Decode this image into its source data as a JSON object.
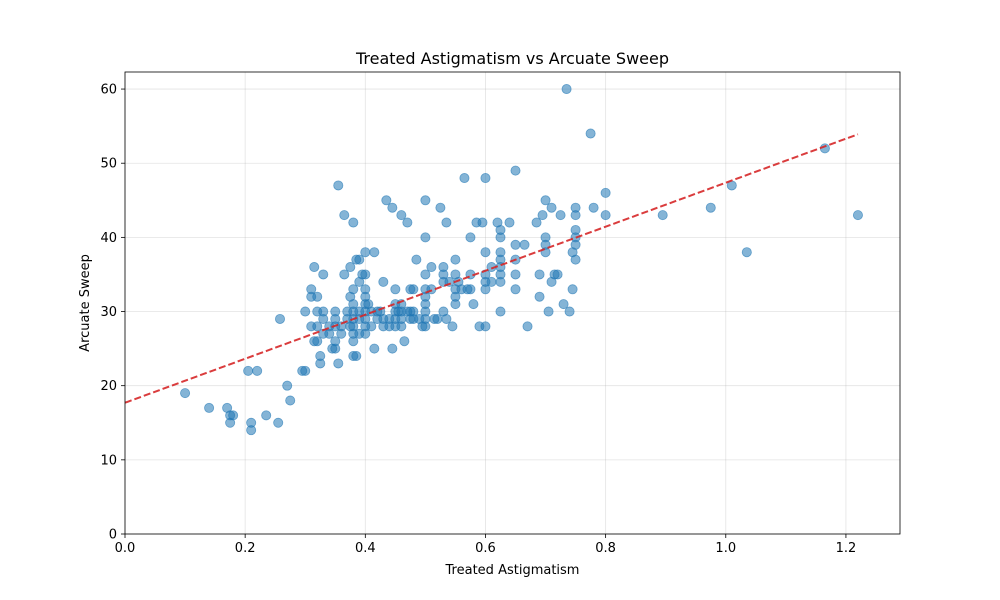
{
  "chart_data": {
    "type": "scatter",
    "title": "Treated Astigmatism vs Arcuate Sweep",
    "xlabel": "Treated Astigmatism",
    "ylabel": "Arcuate Sweep",
    "xlim": [
      0.0,
      1.29
    ],
    "ylim": [
      0,
      62.3
    ],
    "xticks": [
      0.0,
      0.2,
      0.4,
      0.6,
      0.8,
      1.0,
      1.2
    ],
    "xtick_labels": [
      "0.0",
      "0.2",
      "0.4",
      "0.6",
      "0.8",
      "1.0",
      "1.2"
    ],
    "yticks": [
      0,
      10,
      20,
      30,
      40,
      50,
      60
    ],
    "ytick_labels": [
      "0",
      "10",
      "20",
      "30",
      "40",
      "50",
      "60"
    ],
    "grid": true,
    "colors": {
      "points": "#1f77b4",
      "trend": "#d62728"
    },
    "points": [
      [
        0.1,
        19
      ],
      [
        0.14,
        17
      ],
      [
        0.17,
        17
      ],
      [
        0.175,
        15
      ],
      [
        0.175,
        16
      ],
      [
        0.18,
        16
      ],
      [
        0.205,
        22
      ],
      [
        0.21,
        15
      ],
      [
        0.21,
        14
      ],
      [
        0.22,
        22
      ],
      [
        0.235,
        16
      ],
      [
        0.255,
        15
      ],
      [
        0.258,
        29
      ],
      [
        0.27,
        20
      ],
      [
        0.275,
        18
      ],
      [
        0.295,
        22
      ],
      [
        0.3,
        22
      ],
      [
        0.3,
        30
      ],
      [
        0.31,
        33
      ],
      [
        0.31,
        32
      ],
      [
        0.31,
        28
      ],
      [
        0.315,
        36
      ],
      [
        0.315,
        26
      ],
      [
        0.32,
        28
      ],
      [
        0.32,
        32
      ],
      [
        0.32,
        30
      ],
      [
        0.32,
        26
      ],
      [
        0.325,
        24
      ],
      [
        0.325,
        23
      ],
      [
        0.33,
        30
      ],
      [
        0.33,
        29
      ],
      [
        0.33,
        27
      ],
      [
        0.33,
        35
      ],
      [
        0.34,
        28
      ],
      [
        0.34,
        27
      ],
      [
        0.345,
        25
      ],
      [
        0.35,
        25
      ],
      [
        0.35,
        26
      ],
      [
        0.35,
        28
      ],
      [
        0.35,
        29
      ],
      [
        0.35,
        30
      ],
      [
        0.355,
        23
      ],
      [
        0.355,
        47
      ],
      [
        0.36,
        28
      ],
      [
        0.36,
        27
      ],
      [
        0.365,
        43
      ],
      [
        0.365,
        35
      ],
      [
        0.37,
        30
      ],
      [
        0.37,
        29
      ],
      [
        0.375,
        36
      ],
      [
        0.375,
        28
      ],
      [
        0.375,
        32
      ],
      [
        0.38,
        33
      ],
      [
        0.38,
        31
      ],
      [
        0.38,
        30
      ],
      [
        0.38,
        29
      ],
      [
        0.38,
        28
      ],
      [
        0.38,
        27
      ],
      [
        0.38,
        24
      ],
      [
        0.38,
        26
      ],
      [
        0.38,
        42
      ],
      [
        0.385,
        24
      ],
      [
        0.385,
        37
      ],
      [
        0.39,
        37
      ],
      [
        0.39,
        30
      ],
      [
        0.39,
        34
      ],
      [
        0.39,
        29
      ],
      [
        0.39,
        27
      ],
      [
        0.395,
        35
      ],
      [
        0.4,
        38
      ],
      [
        0.4,
        35
      ],
      [
        0.4,
        33
      ],
      [
        0.4,
        32
      ],
      [
        0.4,
        31
      ],
      [
        0.4,
        30
      ],
      [
        0.4,
        29
      ],
      [
        0.4,
        28
      ],
      [
        0.4,
        27
      ],
      [
        0.405,
        31
      ],
      [
        0.41,
        28
      ],
      [
        0.41,
        30
      ],
      [
        0.415,
        38
      ],
      [
        0.415,
        25
      ],
      [
        0.42,
        30
      ],
      [
        0.42,
        29
      ],
      [
        0.425,
        30
      ],
      [
        0.43,
        34
      ],
      [
        0.43,
        29
      ],
      [
        0.43,
        28
      ],
      [
        0.435,
        45
      ],
      [
        0.44,
        29
      ],
      [
        0.44,
        28
      ],
      [
        0.445,
        44
      ],
      [
        0.445,
        25
      ],
      [
        0.45,
        33
      ],
      [
        0.45,
        31
      ],
      [
        0.45,
        30
      ],
      [
        0.45,
        29
      ],
      [
        0.45,
        28
      ],
      [
        0.455,
        30
      ],
      [
        0.46,
        43
      ],
      [
        0.46,
        31
      ],
      [
        0.46,
        30
      ],
      [
        0.46,
        29
      ],
      [
        0.46,
        28
      ],
      [
        0.465,
        26
      ],
      [
        0.47,
        42
      ],
      [
        0.47,
        30
      ],
      [
        0.475,
        33
      ],
      [
        0.475,
        30
      ],
      [
        0.475,
        29
      ],
      [
        0.48,
        33
      ],
      [
        0.48,
        30
      ],
      [
        0.48,
        29
      ],
      [
        0.485,
        37
      ],
      [
        0.49,
        29
      ],
      [
        0.495,
        28
      ],
      [
        0.5,
        45
      ],
      [
        0.5,
        40
      ],
      [
        0.5,
        35
      ],
      [
        0.5,
        33
      ],
      [
        0.5,
        32
      ],
      [
        0.5,
        31
      ],
      [
        0.5,
        30
      ],
      [
        0.5,
        29
      ],
      [
        0.5,
        28
      ],
      [
        0.51,
        36
      ],
      [
        0.51,
        33
      ],
      [
        0.515,
        29
      ],
      [
        0.52,
        29
      ],
      [
        0.525,
        44
      ],
      [
        0.53,
        36
      ],
      [
        0.53,
        35
      ],
      [
        0.53,
        34
      ],
      [
        0.53,
        30
      ],
      [
        0.535,
        42
      ],
      [
        0.535,
        29
      ],
      [
        0.54,
        34
      ],
      [
        0.545,
        28
      ],
      [
        0.55,
        37
      ],
      [
        0.55,
        35
      ],
      [
        0.55,
        33
      ],
      [
        0.55,
        32
      ],
      [
        0.55,
        31
      ],
      [
        0.555,
        34
      ],
      [
        0.56,
        33
      ],
      [
        0.565,
        48
      ],
      [
        0.57,
        33
      ],
      [
        0.575,
        35
      ],
      [
        0.575,
        40
      ],
      [
        0.575,
        33
      ],
      [
        0.58,
        31
      ],
      [
        0.585,
        42
      ],
      [
        0.59,
        28
      ],
      [
        0.595,
        42
      ],
      [
        0.6,
        48
      ],
      [
        0.6,
        38
      ],
      [
        0.6,
        35
      ],
      [
        0.6,
        34
      ],
      [
        0.6,
        33
      ],
      [
        0.6,
        28
      ],
      [
        0.61,
        36
      ],
      [
        0.61,
        34
      ],
      [
        0.62,
        42
      ],
      [
        0.625,
        40
      ],
      [
        0.625,
        41
      ],
      [
        0.625,
        38
      ],
      [
        0.625,
        37
      ],
      [
        0.625,
        36
      ],
      [
        0.625,
        35
      ],
      [
        0.625,
        34
      ],
      [
        0.625,
        30
      ],
      [
        0.64,
        42
      ],
      [
        0.65,
        49
      ],
      [
        0.65,
        39
      ],
      [
        0.65,
        37
      ],
      [
        0.65,
        35
      ],
      [
        0.65,
        33
      ],
      [
        0.665,
        39
      ],
      [
        0.67,
        28
      ],
      [
        0.685,
        42
      ],
      [
        0.69,
        35
      ],
      [
        0.69,
        32
      ],
      [
        0.695,
        43
      ],
      [
        0.7,
        45
      ],
      [
        0.7,
        40
      ],
      [
        0.7,
        39
      ],
      [
        0.7,
        38
      ],
      [
        0.705,
        30
      ],
      [
        0.71,
        44
      ],
      [
        0.71,
        34
      ],
      [
        0.715,
        35
      ],
      [
        0.72,
        35
      ],
      [
        0.725,
        43
      ],
      [
        0.73,
        31
      ],
      [
        0.735,
        60
      ],
      [
        0.74,
        30
      ],
      [
        0.745,
        38
      ],
      [
        0.745,
        33
      ],
      [
        0.75,
        44
      ],
      [
        0.75,
        43
      ],
      [
        0.75,
        41
      ],
      [
        0.75,
        40
      ],
      [
        0.75,
        39
      ],
      [
        0.75,
        37
      ],
      [
        0.775,
        54
      ],
      [
        0.78,
        44
      ],
      [
        0.8,
        46
      ],
      [
        0.8,
        43
      ],
      [
        0.895,
        43
      ],
      [
        0.975,
        44
      ],
      [
        1.01,
        47
      ],
      [
        1.035,
        38
      ],
      [
        1.165,
        52
      ],
      [
        1.22,
        43
      ]
    ],
    "trendline": {
      "x": [
        0.0,
        1.22
      ],
      "y": [
        17.7,
        53.9
      ],
      "style": "dashed"
    }
  }
}
